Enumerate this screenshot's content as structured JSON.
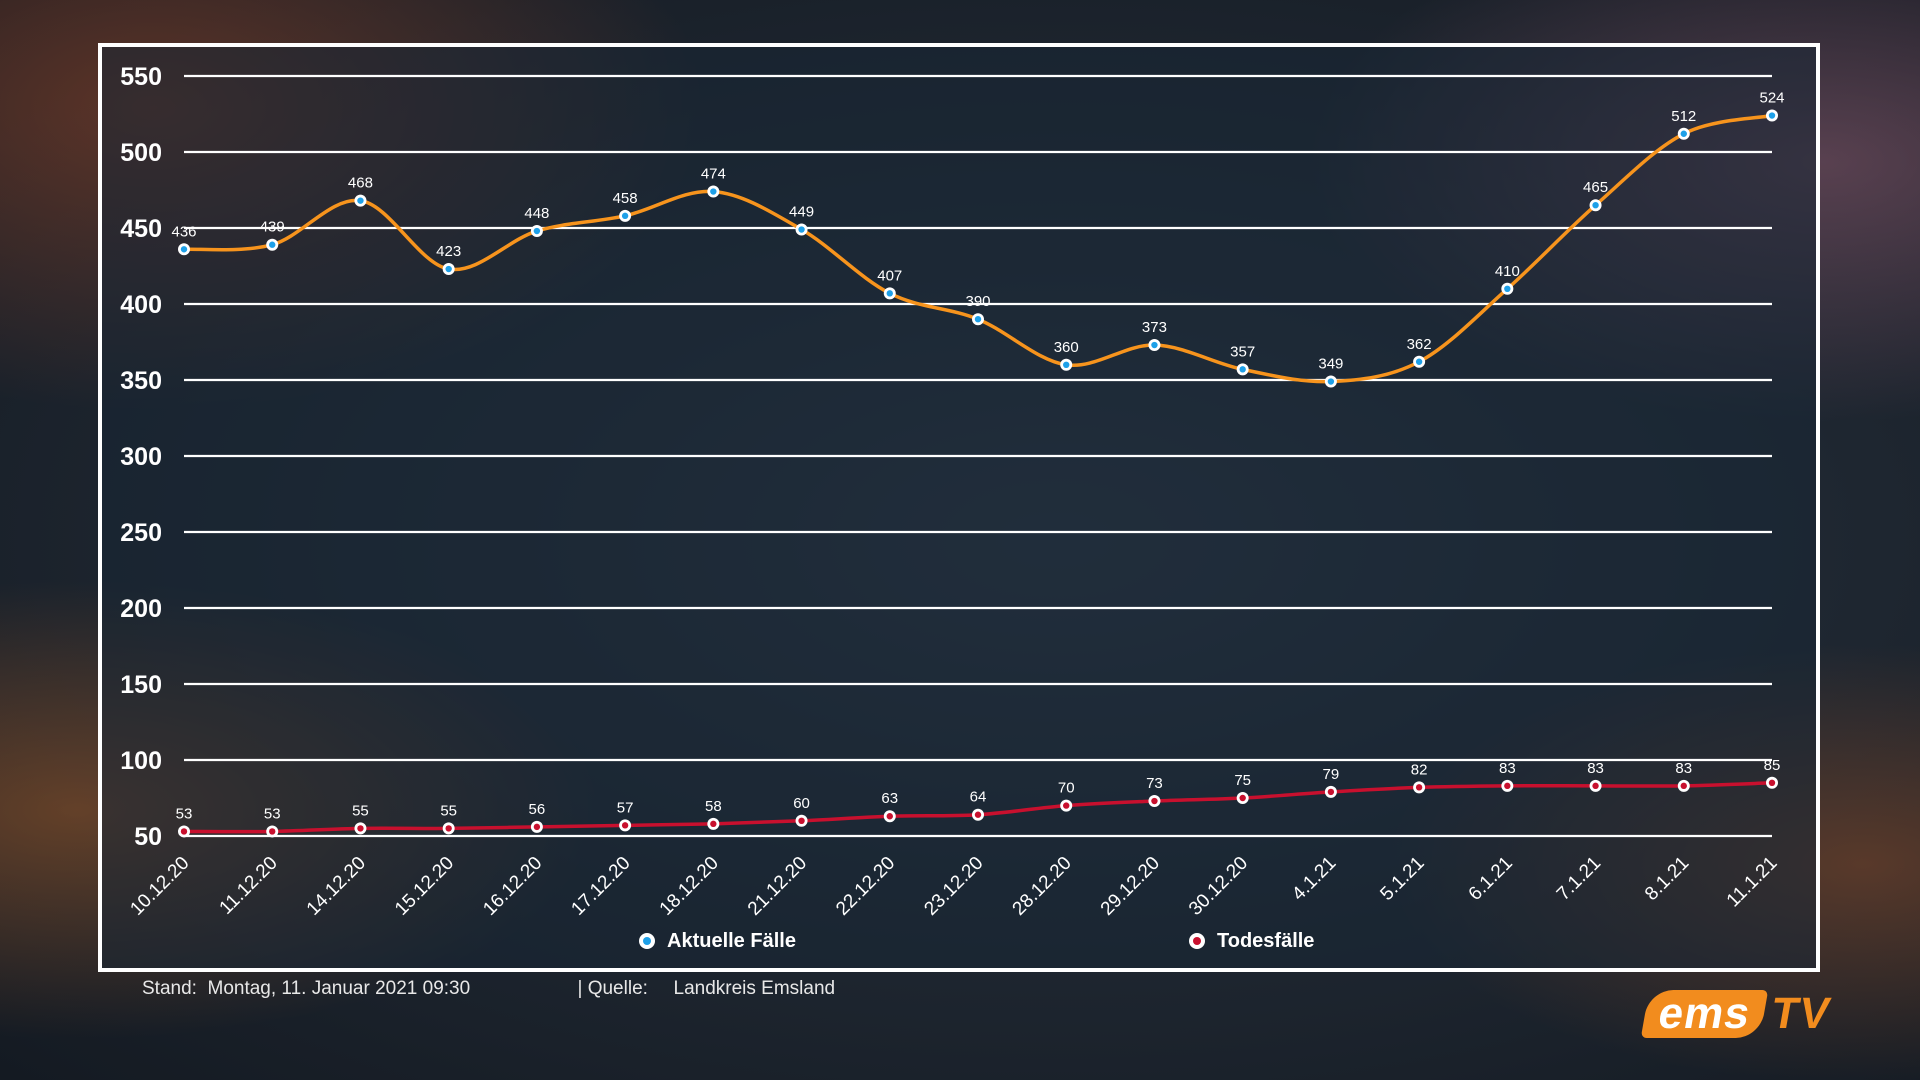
{
  "chart_data": {
    "type": "line",
    "categories": [
      "10.12.20",
      "11.12.20",
      "14.12.20",
      "15.12.20",
      "16.12.20",
      "17.12.20",
      "18.12.20",
      "21.12.20",
      "22.12.20",
      "23.12.20",
      "28.12.20",
      "29.12.20",
      "30.12.20",
      "4.1.21",
      "5.1.21",
      "6.1.21",
      "7.1.21",
      "8.1.21",
      "11.1.21"
    ],
    "series": [
      {
        "name": "Aktuelle Fälle",
        "color": "#f7941d",
        "marker": "#1ea0e8",
        "values": [
          436,
          439,
          468,
          423,
          448,
          458,
          474,
          449,
          407,
          390,
          360,
          373,
          357,
          349,
          362,
          410,
          465,
          512,
          524
        ]
      },
      {
        "name": "Todesfälle",
        "color": "#c8102e",
        "marker": "#c8102e",
        "values": [
          53,
          53,
          55,
          55,
          56,
          57,
          58,
          60,
          63,
          64,
          70,
          73,
          75,
          79,
          82,
          83,
          83,
          83,
          85
        ]
      }
    ],
    "yticks": [
      50,
      100,
      150,
      200,
      250,
      300,
      350,
      400,
      450,
      500,
      550
    ],
    "ylim": [
      50,
      550
    ],
    "grid": true,
    "legend_position": "bottom"
  },
  "footer": {
    "stand_label": "Stand:",
    "stand_value": "Montag, 11. Januar 2021 09:30",
    "source_label": "| Quelle:",
    "source_value": "Landkreis Emsland"
  },
  "logo": {
    "part1": "ems",
    "part2": "TV"
  }
}
